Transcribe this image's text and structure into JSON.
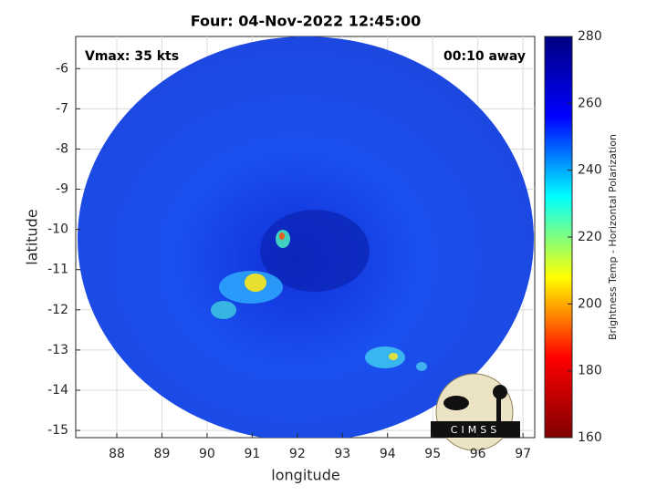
{
  "chart_data": {
    "type": "image",
    "title": "Four: 04-Nov-2022 12:45:00",
    "xlabel": "longitude",
    "ylabel": "latitude",
    "xlim": [
      87.09,
      97.26
    ],
    "xticks": [
      88,
      89,
      90,
      91,
      92,
      93,
      94,
      95,
      96,
      97
    ],
    "ylim": [
      -15.18,
      -5.2
    ],
    "yticks": [
      -6,
      -7,
      -8,
      -9,
      -10,
      -11,
      -12,
      -13,
      -14,
      -15
    ],
    "grid": true,
    "annotations": [
      "Vmax: 35 kts",
      "00:10 away"
    ],
    "colorbar": {
      "label": "Brightness Temp - Horizontal Polarization",
      "lim": [
        160,
        280
      ],
      "ticks": [
        160,
        180,
        200,
        220,
        240,
        260,
        280
      ],
      "colormap": [
        "#800000",
        "#ff0000",
        "#ffff00",
        "#00ffff",
        "#0000ff",
        "#000080"
      ]
    },
    "logo": "CIMSS"
  }
}
